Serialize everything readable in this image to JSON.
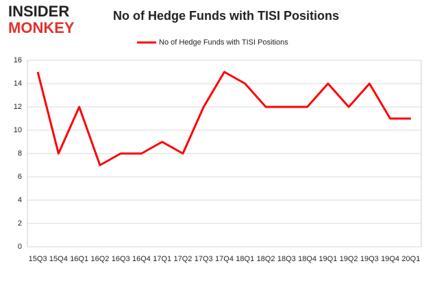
{
  "logo": {
    "line1": "INSIDER",
    "line2": "MONKEY"
  },
  "chart_data": {
    "type": "line",
    "title": "No of Hedge Funds with TISI Positions",
    "categories": [
      "15Q3",
      "15Q4",
      "16Q1",
      "16Q2",
      "16Q3",
      "16Q4",
      "17Q1",
      "17Q2",
      "17Q3",
      "17Q4",
      "18Q1",
      "18Q2",
      "18Q3",
      "18Q4",
      "19Q1",
      "19Q2",
      "19Q3",
      "19Q4",
      "20Q1"
    ],
    "series": [
      {
        "name": "No of Hedge Funds with TISI Positions",
        "color": "#ff0000",
        "values": [
          15,
          8,
          12,
          7,
          8,
          8,
          9,
          8,
          12,
          15,
          14,
          12,
          12,
          12,
          14,
          12,
          14,
          11,
          11
        ]
      }
    ],
    "ylim": [
      0,
      16
    ],
    "yticks": [
      0,
      2,
      4,
      6,
      8,
      10,
      12,
      14,
      16
    ],
    "grid": true,
    "legend": "top"
  }
}
